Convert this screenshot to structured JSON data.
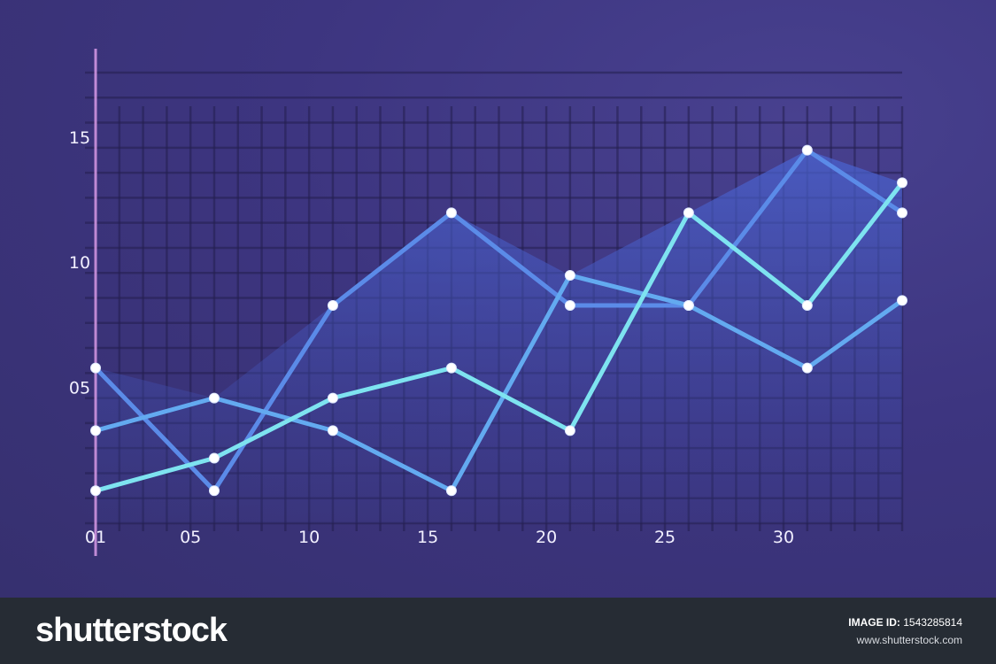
{
  "chart_data": {
    "type": "line",
    "x_tick_labels": [
      "01",
      "05",
      "10",
      "15",
      "20",
      "25",
      "30"
    ],
    "x_tick_values": [
      1,
      5,
      10,
      15,
      20,
      25,
      30
    ],
    "y_tick_labels": [
      "05",
      "10",
      "15"
    ],
    "y_tick_values": [
      5,
      10,
      15
    ],
    "xlim": [
      1,
      35
    ],
    "ylim": [
      0,
      18
    ],
    "grid": true,
    "series": [
      {
        "color": "#5b8be8",
        "x": [
          1,
          6,
          11,
          16,
          21,
          26,
          31,
          35
        ],
        "y": [
          6.2,
          1.3,
          8.7,
          12.4,
          8.7,
          8.7,
          14.9,
          12.4
        ]
      },
      {
        "color": "#63aaf0",
        "x": [
          1,
          6,
          11,
          16,
          21,
          26,
          31,
          35
        ],
        "y": [
          3.7,
          5.0,
          3.7,
          1.3,
          9.9,
          8.7,
          6.2,
          8.9
        ]
      },
      {
        "color": "#7ee3f0",
        "x": [
          1,
          6,
          11,
          16,
          21,
          26,
          31,
          35
        ],
        "y": [
          1.3,
          2.6,
          5.0,
          6.2,
          3.7,
          12.4,
          8.7,
          13.6
        ]
      }
    ],
    "colors": {
      "axis": "#e6a6f0",
      "grid": "#241f4f",
      "marker": "#ffffff",
      "fill": "#4058c0"
    }
  },
  "footer": {
    "brand": "shutterstock",
    "image_id_label": "IMAGE ID:",
    "image_id_value": "1543285814",
    "site": "www.shutterstock.com"
  }
}
